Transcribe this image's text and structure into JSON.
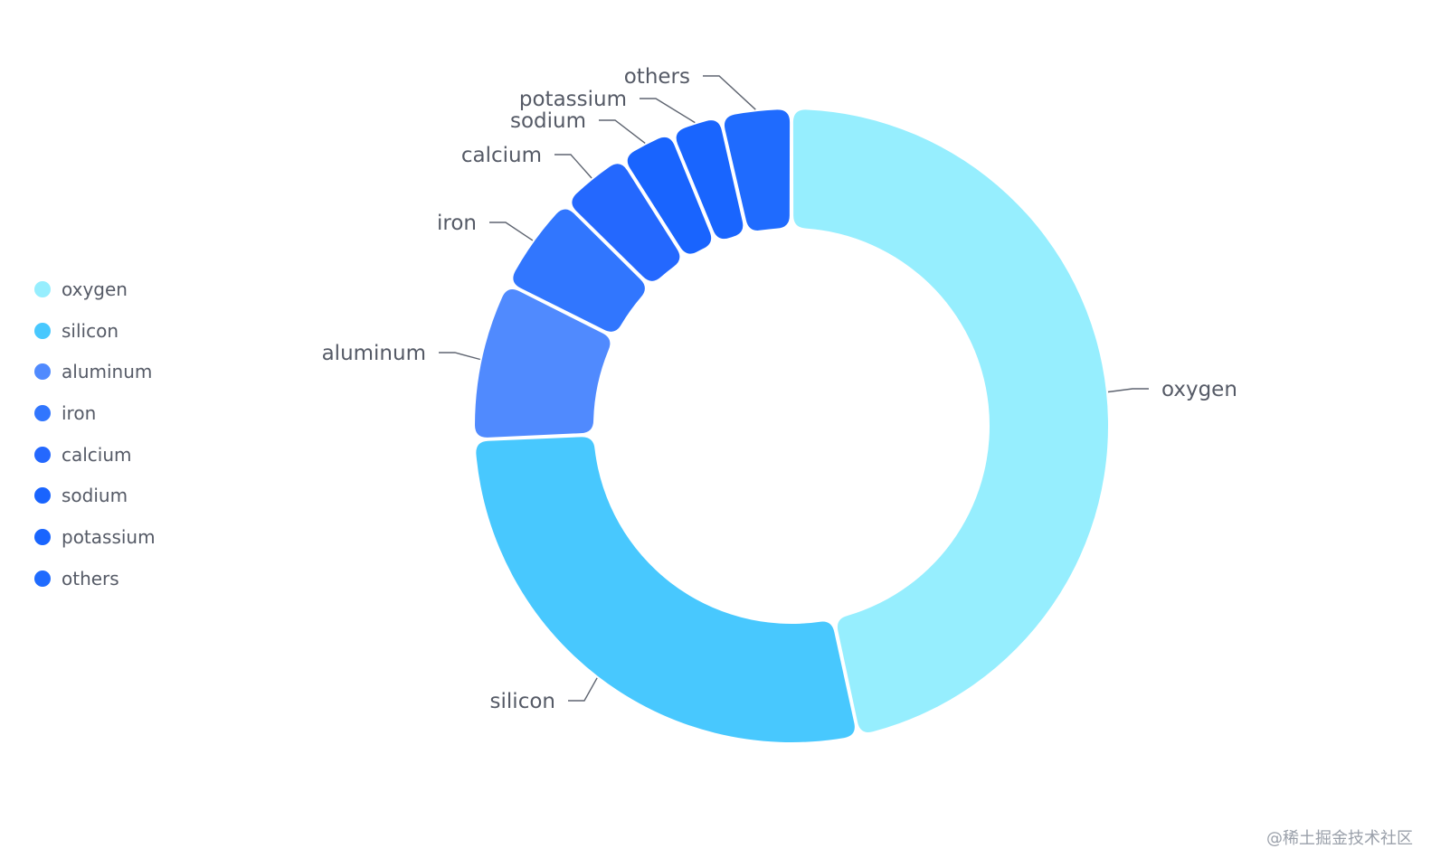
{
  "chart_data": {
    "type": "pie",
    "categories": [
      "oxygen",
      "silicon",
      "aluminum",
      "iron",
      "calcium",
      "sodium",
      "potassium",
      "others"
    ],
    "values": [
      46.6,
      27.7,
      8.1,
      5.0,
      3.6,
      2.8,
      2.6,
      3.6
    ],
    "colors": [
      "#96eefe",
      "#48c8fe",
      "#508afe",
      "#3176fe",
      "#2468fe",
      "#1964fe",
      "#1965fe",
      "#1f6bfe"
    ],
    "legend": {
      "position": "left",
      "items": [
        "oxygen",
        "silicon",
        "aluminum",
        "iron",
        "calcium",
        "sodium",
        "potassium",
        "others"
      ]
    }
  },
  "watermark": "@稀土掘金技术社区"
}
